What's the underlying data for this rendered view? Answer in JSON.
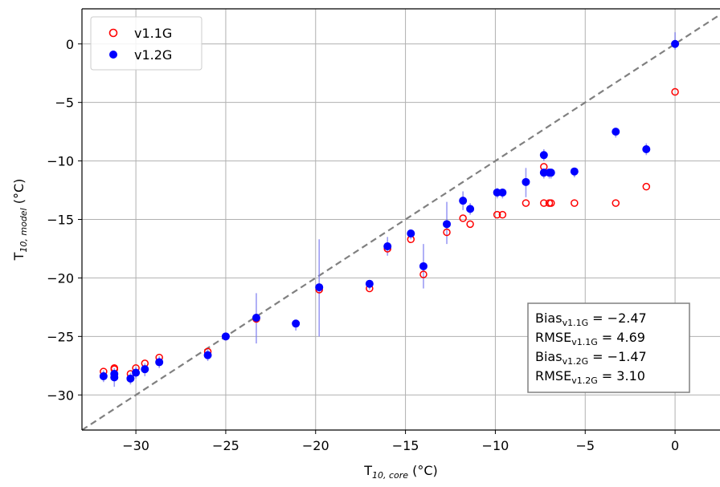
{
  "chart_data": {
    "type": "scatter",
    "xlabel": "T10,core (°C)",
    "ylabel": "T10,model (°C)",
    "xlabel_parts": {
      "base": "T",
      "sub": "10, core",
      "unit": " (°C)"
    },
    "ylabel_parts": {
      "base": "T",
      "sub": "10, model",
      "unit": " (°C)"
    },
    "xlim": [
      -33,
      2.5
    ],
    "ylim": [
      -33,
      3
    ],
    "xticks": [
      -30,
      -25,
      -20,
      -15,
      -10,
      -5,
      0
    ],
    "yticks": [
      -30,
      -25,
      -20,
      -15,
      -10,
      -5,
      0
    ],
    "xtick_labels": [
      "−30",
      "−25",
      "−20",
      "−15",
      "−10",
      "−5",
      "0"
    ],
    "ytick_labels": [
      "−30",
      "−25",
      "−20",
      "−15",
      "−10",
      "−5",
      "0"
    ],
    "grid": true,
    "reference_line": {
      "type": "1:1",
      "style": "dashed",
      "color": "#808080"
    },
    "legend": {
      "placement": "top-left",
      "entries": [
        {
          "label": "v1.1G",
          "marker": "open-circle",
          "color": "#ff0000"
        },
        {
          "label": "v1.2G",
          "marker": "filled-circle",
          "color": "#0000ff"
        }
      ]
    },
    "series": [
      {
        "name": "v1.1G",
        "marker": "open-circle",
        "color": "#ff0000",
        "x": [
          -31.8,
          -31.2,
          -31.2,
          -30.3,
          -30.0,
          -29.5,
          -28.7,
          -26.0,
          -25.0,
          -23.3,
          -21.1,
          -19.8,
          -17.0,
          -16.0,
          -14.7,
          -14.0,
          -12.7,
          -11.8,
          -11.4,
          -9.9,
          -9.6,
          -8.3,
          -7.3,
          -7.3,
          -7.0,
          -6.9,
          -5.6,
          -3.3,
          -1.6,
          0.0
        ],
        "y": [
          -28.0,
          -27.8,
          -27.7,
          -28.2,
          -27.7,
          -27.3,
          -26.8,
          -26.3,
          -25.0,
          -23.5,
          -23.9,
          -21.0,
          -20.9,
          -17.5,
          -16.7,
          -19.7,
          -16.1,
          -14.9,
          -15.4,
          -14.6,
          -14.6,
          -13.6,
          -10.5,
          -13.6,
          -13.6,
          -13.6,
          -13.6,
          -13.6,
          -12.2,
          -4.1
        ]
      },
      {
        "name": "v1.2G",
        "marker": "filled-circle",
        "color": "#0000ff",
        "x": [
          -31.8,
          -31.2,
          -31.2,
          -30.3,
          -30.0,
          -29.5,
          -28.7,
          -26.0,
          -25.0,
          -23.3,
          -21.1,
          -19.8,
          -17.0,
          -16.0,
          -14.7,
          -14.0,
          -12.7,
          -11.8,
          -11.4,
          -9.9,
          -9.6,
          -8.3,
          -7.3,
          -7.3,
          -7.0,
          -6.9,
          -5.6,
          -3.3,
          -1.6,
          0.0
        ],
        "y": [
          -28.4,
          -28.2,
          -28.5,
          -28.6,
          -28.1,
          -27.8,
          -27.2,
          -26.6,
          -25.0,
          -23.4,
          -23.9,
          -20.8,
          -20.5,
          -17.3,
          -16.2,
          -19.0,
          -15.4,
          -13.4,
          -14.1,
          -12.7,
          -12.7,
          -11.8,
          -9.5,
          -11.0,
          -11.0,
          -11.0,
          -10.9,
          -7.5,
          -9.0,
          0.0
        ],
        "err_low": [
          0.5,
          0.5,
          0.8,
          0.5,
          0.5,
          0.6,
          0.5,
          0.5,
          0.3,
          2.2,
          0.6,
          4.2,
          0.5,
          0.8,
          0.5,
          1.9,
          1.7,
          0.8,
          0.5,
          0.5,
          0.5,
          1.3,
          0.5,
          0.5,
          0.5,
          0.5,
          0.5,
          0.5,
          0.5,
          0.5
        ],
        "err_high": [
          0.5,
          0.5,
          0.5,
          0.5,
          0.5,
          0.5,
          0.5,
          0.5,
          0.3,
          2.1,
          0.3,
          4.1,
          0.3,
          0.8,
          0.3,
          1.9,
          1.9,
          0.8,
          0.5,
          0.4,
          0.3,
          1.2,
          0.5,
          0.3,
          0.3,
          0.3,
          0.3,
          0.3,
          0.5,
          1.0
        ]
      }
    ],
    "stats_box": {
      "placement": "bottom-right",
      "lines": [
        {
          "name": "Bias",
          "sub": "v1.1G",
          "value": " = −2.47"
        },
        {
          "name": "RMSE",
          "sub": "v1.1G",
          "value": " = 4.69"
        },
        {
          "name": "Bias",
          "sub": "v1.2G",
          "value": " = −1.47"
        },
        {
          "name": "RMSE",
          "sub": "v1.2G",
          "value": " = 3.10"
        }
      ]
    }
  }
}
